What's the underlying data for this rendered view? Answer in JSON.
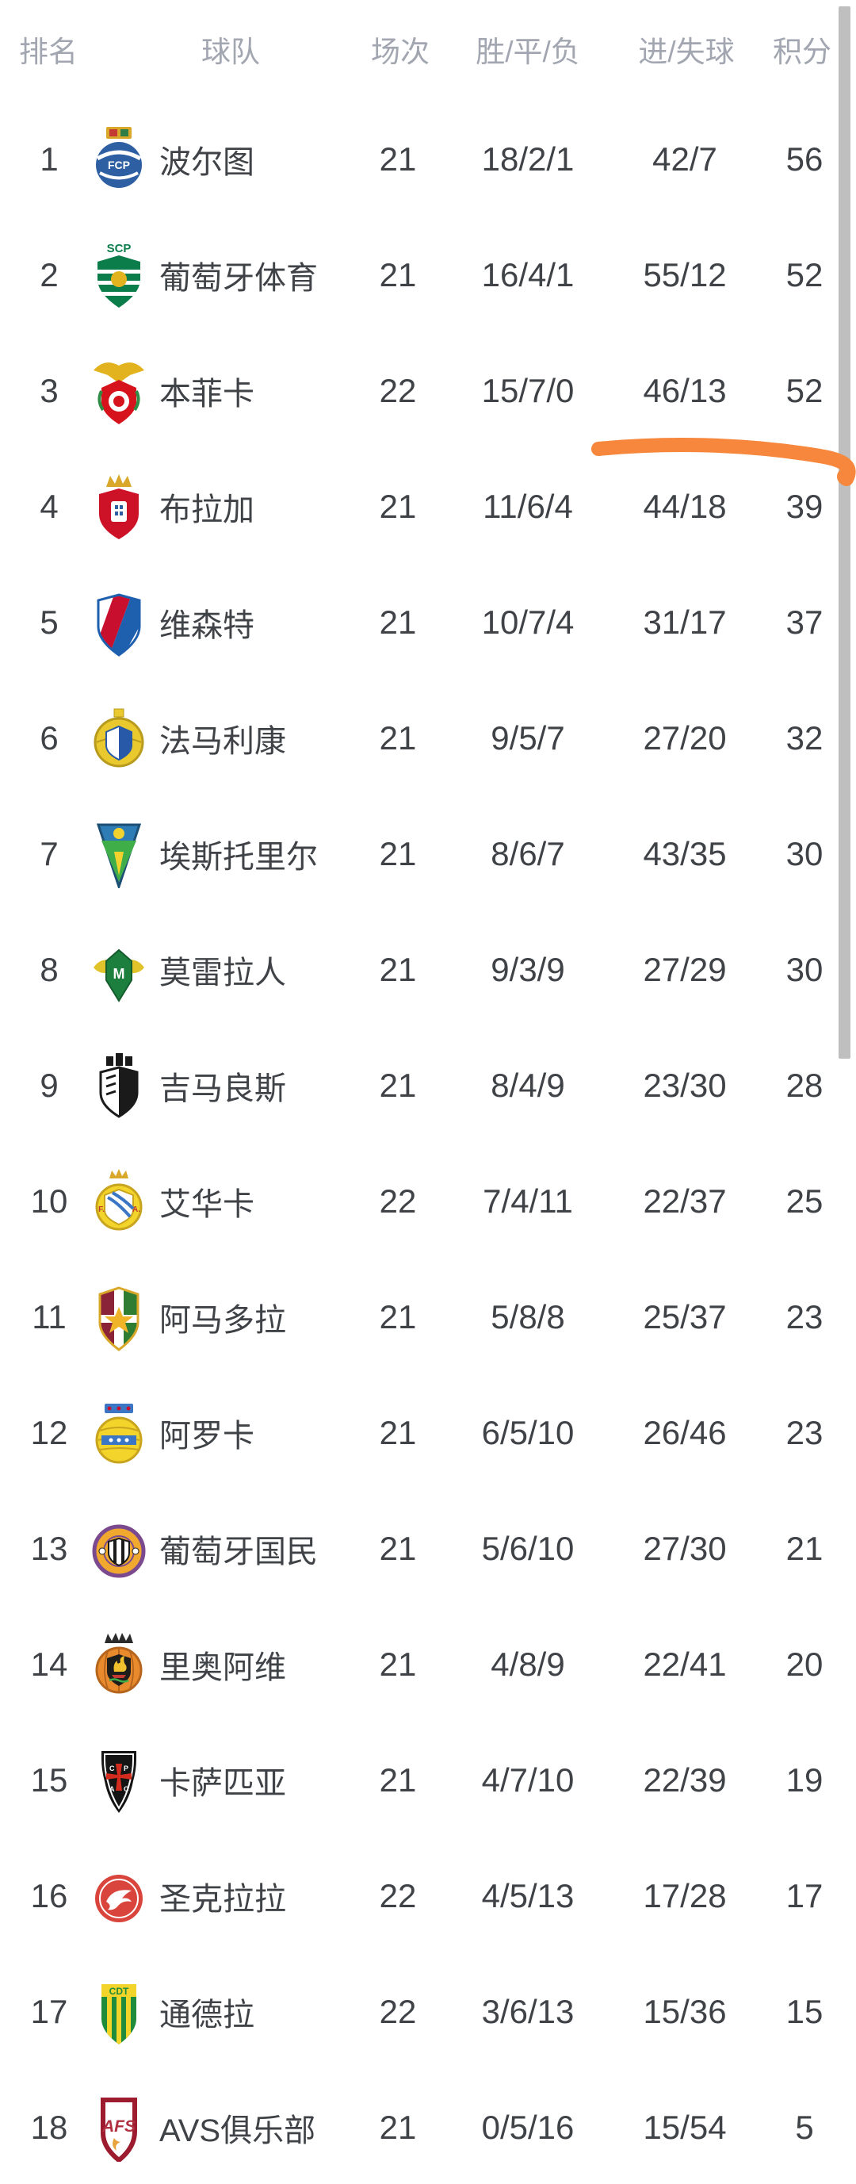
{
  "header": {
    "columns": [
      {
        "key": "rank",
        "label": "排名"
      },
      {
        "key": "team",
        "label": "球队"
      },
      {
        "key": "matches",
        "label": "场次"
      },
      {
        "key": "wdl",
        "label": "胜/平/负"
      },
      {
        "key": "goals",
        "label": "进/失球"
      },
      {
        "key": "points",
        "label": "积分"
      }
    ]
  },
  "table": {
    "rows": [
      {
        "rank": "1",
        "team": "波尔图",
        "logo": "porto-crest",
        "matches": "21",
        "wdl": "18/2/1",
        "goals": "42/7",
        "points": "56"
      },
      {
        "rank": "2",
        "team": "葡萄牙体育",
        "logo": "sporting-crest",
        "matches": "21",
        "wdl": "16/4/1",
        "goals": "55/12",
        "points": "52"
      },
      {
        "rank": "3",
        "team": "本菲卡",
        "logo": "benfica-crest",
        "matches": "22",
        "wdl": "15/7/0",
        "goals": "46/13",
        "points": "52"
      },
      {
        "rank": "4",
        "team": "布拉加",
        "logo": "braga-crest",
        "matches": "21",
        "wdl": "11/6/4",
        "goals": "44/18",
        "points": "39"
      },
      {
        "rank": "5",
        "team": "维森特",
        "logo": "gil-vicente-crest",
        "matches": "21",
        "wdl": "10/7/4",
        "goals": "31/17",
        "points": "37"
      },
      {
        "rank": "6",
        "team": "法马利康",
        "logo": "famalicao-crest",
        "matches": "21",
        "wdl": "9/5/7",
        "goals": "27/20",
        "points": "32"
      },
      {
        "rank": "7",
        "team": "埃斯托里尔",
        "logo": "estoril-crest",
        "matches": "21",
        "wdl": "8/6/7",
        "goals": "43/35",
        "points": "30"
      },
      {
        "rank": "8",
        "team": "莫雷拉人",
        "logo": "moreirense-crest",
        "matches": "21",
        "wdl": "9/3/9",
        "goals": "27/29",
        "points": "30"
      },
      {
        "rank": "9",
        "team": "吉马良斯",
        "logo": "guimaraes-crest",
        "matches": "21",
        "wdl": "8/4/9",
        "goals": "23/30",
        "points": "28"
      },
      {
        "rank": "10",
        "team": "艾华卡",
        "logo": "alverca-crest",
        "matches": "22",
        "wdl": "7/4/11",
        "goals": "22/37",
        "points": "25"
      },
      {
        "rank": "11",
        "team": "阿马多拉",
        "logo": "amadora-crest",
        "matches": "21",
        "wdl": "5/8/8",
        "goals": "25/37",
        "points": "23"
      },
      {
        "rank": "12",
        "team": "阿罗卡",
        "logo": "arouca-crest",
        "matches": "21",
        "wdl": "6/5/10",
        "goals": "26/46",
        "points": "23"
      },
      {
        "rank": "13",
        "team": "葡萄牙国民",
        "logo": "nacional-crest",
        "matches": "21",
        "wdl": "5/6/10",
        "goals": "27/30",
        "points": "21"
      },
      {
        "rank": "14",
        "team": "里奥阿维",
        "logo": "rio-ave-crest",
        "matches": "21",
        "wdl": "4/8/9",
        "goals": "22/41",
        "points": "20"
      },
      {
        "rank": "15",
        "team": "卡萨匹亚",
        "logo": "casa-pia-crest",
        "matches": "21",
        "wdl": "4/7/10",
        "goals": "22/39",
        "points": "19"
      },
      {
        "rank": "16",
        "team": "圣克拉拉",
        "logo": "santa-clara-crest",
        "matches": "22",
        "wdl": "4/5/13",
        "goals": "17/28",
        "points": "17"
      },
      {
        "rank": "17",
        "team": "通德拉",
        "logo": "tondela-crest",
        "matches": "22",
        "wdl": "3/6/13",
        "goals": "15/36",
        "points": "15"
      },
      {
        "rank": "18",
        "team": "AVS俱乐部",
        "logo": "avs-crest",
        "matches": "21",
        "wdl": "0/5/16",
        "goals": "15/54",
        "points": "5"
      }
    ]
  },
  "annotation": {
    "type": "hand-drawn-highlight-stroke",
    "color": "#f6873c"
  },
  "scrollbar": {
    "color": "#bfbfbf"
  },
  "text_colors": {
    "header": "#a2a6b0",
    "body": "#3f4347"
  }
}
